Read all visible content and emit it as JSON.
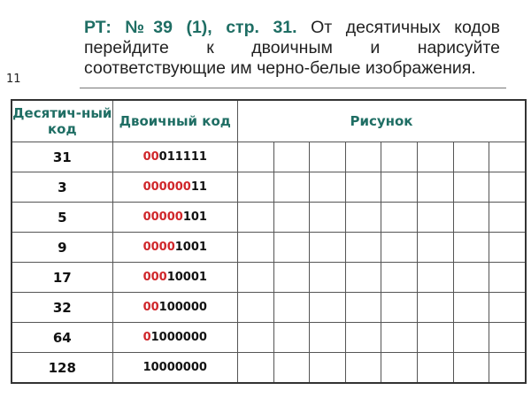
{
  "slide_number": "11",
  "title": {
    "highlight": "РТ: №39 (1), стр. 31.",
    "text": " От десятичных кодов перейдите к двоичным и нарисуйте соответствующие им черно-белые изображения."
  },
  "table": {
    "headers": [
      "Десятич-ный код",
      "Двоичный код",
      "Рисунок"
    ],
    "colors": {
      "header": "#1f6e64",
      "leading_zeros": "#d0262a"
    },
    "rows": [
      {
        "decimal": "31",
        "lead": "00",
        "rest": "011111"
      },
      {
        "decimal": "3",
        "lead": "000000",
        "rest": "11"
      },
      {
        "decimal": "5",
        "lead": "00000",
        "rest": "101"
      },
      {
        "decimal": "9",
        "lead": "0000",
        "rest": "1001"
      },
      {
        "decimal": "17",
        "lead": "000",
        "rest": "10001"
      },
      {
        "decimal": "32",
        "lead": "00",
        "rest": "100000"
      },
      {
        "decimal": "64",
        "lead": "0",
        "rest": "1000000"
      },
      {
        "decimal": "128",
        "lead": "",
        "rest": "10000000"
      }
    ]
  }
}
